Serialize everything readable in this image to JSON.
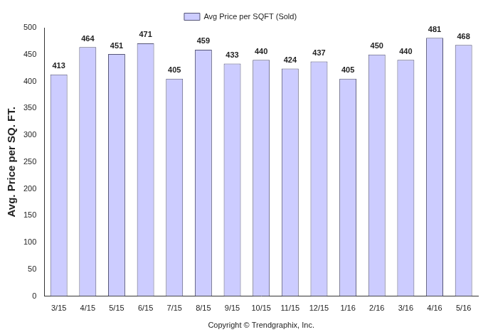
{
  "chart_data": {
    "type": "bar",
    "categories": [
      "3/15",
      "4/15",
      "5/15",
      "6/15",
      "7/15",
      "8/15",
      "9/15",
      "10/15",
      "11/15",
      "12/15",
      "1/16",
      "2/16",
      "3/16",
      "4/16",
      "5/16"
    ],
    "series": [
      {
        "name": "Avg Price per SQFT (Sold)",
        "color": "#ccccff",
        "values": [
          413,
          464,
          451,
          471,
          405,
          459,
          433,
          440,
          424,
          437,
          405,
          450,
          440,
          481,
          468
        ]
      }
    ],
    "ylabel": "Avg. Price per SQ. FT.",
    "annotations": [
      "Copyright © Trendgraphix, Inc."
    ],
    "ylim": [
      0,
      500
    ],
    "yticks": [
      0,
      50,
      100,
      150,
      200,
      250,
      300,
      350,
      400,
      450,
      500
    ],
    "grid": false,
    "legend": "top",
    "data_labels": true
  }
}
